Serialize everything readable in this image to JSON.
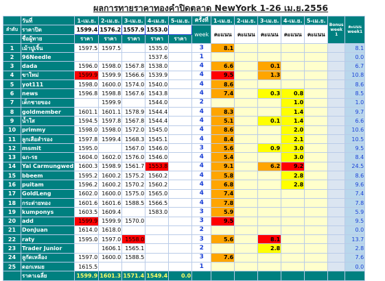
{
  "title": "ผลการทายราคาทองคำปิดตลาด NewYork 1-26 เม.ย.2556",
  "header": {
    "day_label": "วันที่",
    "rank_label": "ลำดับ",
    "closing_label": "ราคาปิด",
    "player_label": "ชื่อผู้ทาย",
    "price_label": "ราคา",
    "times_label": "ครั้งที่",
    "week_label": "week",
    "score_label": "คะแนน",
    "bonus_label": "Bonus week 1",
    "week1_label": "คะแนน week1",
    "dates": [
      "1-เม.ย.",
      "2-เม.ย.",
      "3-เม.ย.",
      "4-เม.ย.",
      "5-เม.ย."
    ],
    "closing_prices": [
      "1599.4",
      "1576.2",
      "1557.9",
      "1553.0",
      ""
    ]
  },
  "rows": [
    {
      "no": "1",
      "name": "เม้าปูเจิ้น",
      "p": [
        "1597.5",
        "1597.5",
        "",
        "1535.0",
        ""
      ],
      "red": [],
      "wk": "3",
      "s": [
        "8.1",
        "",
        "",
        "",
        ""
      ],
      "sc": [
        "o",
        "",
        "",
        "",
        ""
      ],
      "bonus": "",
      "week1": "8.1"
    },
    {
      "no": "2",
      "name": "96Needle",
      "p": [
        "",
        "",
        "",
        "1537.6",
        ""
      ],
      "red": [],
      "wk": "1",
      "s": [
        "",
        "",
        "",
        "",
        ""
      ],
      "sc": [
        "",
        "",
        "",
        "",
        ""
      ],
      "bonus": "",
      "week1": "0.0"
    },
    {
      "no": "3",
      "name": "dada",
      "p": [
        "1596.0",
        "1598.0",
        "1567.8",
        "1538.0",
        ""
      ],
      "red": [],
      "wk": "4",
      "s": [
        "6.6",
        "",
        "0.1",
        "",
        ""
      ],
      "sc": [
        "o",
        "",
        "o",
        "",
        ""
      ],
      "bonus": "",
      "week1": "6.7"
    },
    {
      "no": "4",
      "name": "ขาใหม่",
      "p": [
        "1599.9",
        "1599.9",
        "1566.6",
        "1539.9",
        ""
      ],
      "red": [
        0
      ],
      "wk": "4",
      "s": [
        "9.5",
        "",
        "1.3",
        "",
        ""
      ],
      "sc": [
        "r",
        "",
        "o",
        "",
        ""
      ],
      "bonus": "",
      "week1": "10.8"
    },
    {
      "no": "5",
      "name": "yot111",
      "p": [
        "1598.0",
        "1600.0",
        "1574.0",
        "1540.0",
        ""
      ],
      "red": [],
      "wk": "4",
      "s": [
        "8.6",
        "",
        "",
        "",
        ""
      ],
      "sc": [
        "o",
        "",
        "",
        "",
        ""
      ],
      "bonus": "",
      "week1": "8.6"
    },
    {
      "no": "6",
      "name": "news",
      "p": [
        "1596.8",
        "1598.8",
        "1567.6",
        "1543.8",
        ""
      ],
      "red": [],
      "wk": "4",
      "s": [
        "7.4",
        "",
        "0.3",
        "0.8",
        ""
      ],
      "sc": [
        "o",
        "",
        "y",
        "y",
        ""
      ],
      "bonus": "",
      "week1": "8.5"
    },
    {
      "no": "7",
      "name": "เด็กชายของ",
      "p": [
        "",
        "1599.9",
        "",
        "1544.0",
        ""
      ],
      "red": [],
      "wk": "2",
      "s": [
        "",
        "",
        "",
        "1.0",
        ""
      ],
      "sc": [
        "",
        "",
        "",
        "y",
        ""
      ],
      "bonus": "",
      "week1": "1.0"
    },
    {
      "no": "8",
      "name": "goldmember",
      "p": [
        "1601.1",
        "1601.1",
        "1578.9",
        "1544.4",
        ""
      ],
      "red": [],
      "wk": "4",
      "s": [
        "8.3",
        "",
        "",
        "1.4",
        ""
      ],
      "sc": [
        "o",
        "",
        "",
        "y",
        ""
      ],
      "bonus": "",
      "week1": "9.7"
    },
    {
      "no": "9",
      "name": "น้ำใส",
      "p": [
        "1594.5",
        "1597.8",
        "1567.8",
        "1544.4",
        ""
      ],
      "red": [],
      "wk": "4",
      "s": [
        "5.1",
        "",
        "0.1",
        "1.4",
        ""
      ],
      "sc": [
        "o",
        "",
        "y",
        "y",
        ""
      ],
      "bonus": "",
      "week1": "6.6"
    },
    {
      "no": "10",
      "name": "primmy",
      "p": [
        "1598.0",
        "1598.0",
        "1572.0",
        "1545.0",
        ""
      ],
      "red": [],
      "wk": "4",
      "s": [
        "8.6",
        "",
        "",
        "2.0",
        ""
      ],
      "sc": [
        "o",
        "",
        "",
        "y",
        ""
      ],
      "bonus": "",
      "week1": "10.6"
    },
    {
      "no": "11",
      "name": "ลูกเสือสำรอง",
      "p": [
        "1597.8",
        "1599.4",
        "1568.3",
        "1545.1",
        ""
      ],
      "red": [],
      "wk": "4",
      "s": [
        "8.4",
        "",
        "",
        "2.1",
        ""
      ],
      "sc": [
        "o",
        "",
        "",
        "y",
        ""
      ],
      "bonus": "",
      "week1": "10.5"
    },
    {
      "no": "12",
      "name": "msmit",
      "p": [
        "1595.0",
        "",
        "1567.0",
        "1546.0",
        ""
      ],
      "red": [],
      "wk": "3",
      "s": [
        "5.6",
        "",
        "0.9",
        "3.0",
        ""
      ],
      "sc": [
        "o",
        "",
        "y",
        "y",
        ""
      ],
      "bonus": "",
      "week1": "9.5"
    },
    {
      "no": "13",
      "name": "ฉก-รธ",
      "p": [
        "1604.0",
        "1602.0",
        "1576.0",
        "1546.0",
        ""
      ],
      "red": [],
      "wk": "4",
      "s": [
        "5.4",
        "",
        "",
        "3.0",
        ""
      ],
      "sc": [
        "o",
        "",
        "",
        "y",
        ""
      ],
      "bonus": "",
      "week1": "8.4"
    },
    {
      "no": "14",
      "name": "Yai Carmungwed",
      "p": [
        "1600.3",
        "1598.9",
        "1561.7",
        "1553.8",
        ""
      ],
      "red": [
        3
      ],
      "wk": "4",
      "s": [
        "9.1",
        "",
        "6.2",
        "9.2",
        ""
      ],
      "sc": [
        "o",
        "",
        "o",
        "r",
        ""
      ],
      "bonus": "",
      "week1": "24.5"
    },
    {
      "no": "15",
      "name": "bbeem",
      "p": [
        "1595.2",
        "1600.2",
        "1575.2",
        "1560.2",
        ""
      ],
      "red": [],
      "wk": "4",
      "s": [
        "5.8",
        "",
        "",
        "2.8",
        ""
      ],
      "sc": [
        "o",
        "",
        "",
        "y",
        ""
      ],
      "bonus": "",
      "week1": "8.6"
    },
    {
      "no": "16",
      "name": "puitam",
      "p": [
        "1596.2",
        "1600.2",
        "1570.2",
        "1560.2",
        ""
      ],
      "red": [],
      "wk": "4",
      "s": [
        "6.8",
        "",
        "",
        "2.8",
        ""
      ],
      "sc": [
        "o",
        "",
        "",
        "y",
        ""
      ],
      "bonus": "",
      "week1": "9.6"
    },
    {
      "no": "17",
      "name": "GoldLeng",
      "p": [
        "1602.0",
        "1600.0",
        "1575.0",
        "1565.0",
        ""
      ],
      "red": [],
      "wk": "4",
      "s": [
        "7.4",
        "",
        "",
        "",
        ""
      ],
      "sc": [
        "o",
        "",
        "",
        "",
        ""
      ],
      "bonus": "",
      "week1": "7.4"
    },
    {
      "no": "18",
      "name": "กระต่ายทอง",
      "p": [
        "1601.6",
        "1601.6",
        "1588.5",
        "1566.5",
        ""
      ],
      "red": [],
      "wk": "4",
      "s": [
        "7.8",
        "",
        "",
        "",
        ""
      ],
      "sc": [
        "o",
        "",
        "",
        "",
        ""
      ],
      "bonus": "",
      "week1": "7.8"
    },
    {
      "no": "19",
      "name": "kumponys",
      "p": [
        "1603.5",
        "1609.4",
        "",
        "1583.0",
        ""
      ],
      "red": [],
      "wk": "3",
      "s": [
        "5.9",
        "",
        "",
        "",
        ""
      ],
      "sc": [
        "o",
        "",
        "",
        "",
        ""
      ],
      "bonus": "",
      "week1": "5.9"
    },
    {
      "no": "20",
      "name": "add",
      "p": [
        "1599.9",
        "1599.9",
        "1570.0",
        "",
        ""
      ],
      "red": [
        0
      ],
      "wk": "3",
      "s": [
        "9.5",
        "",
        "",
        "",
        ""
      ],
      "sc": [
        "r",
        "",
        "",
        "",
        ""
      ],
      "bonus": "",
      "week1": "9.5"
    },
    {
      "no": "21",
      "name": "DonJuan",
      "p": [
        "1614.0",
        "1618.0",
        "",
        "",
        ""
      ],
      "red": [],
      "wk": "2",
      "s": [
        "",
        "",
        "",
        "",
        ""
      ],
      "sc": [
        "",
        "",
        "",
        "",
        ""
      ],
      "bonus": "",
      "week1": "0.0"
    },
    {
      "no": "22",
      "name": "raty",
      "p": [
        "1595.0",
        "1597.0",
        "1558.0",
        "",
        ""
      ],
      "red": [
        2
      ],
      "wk": "3",
      "s": [
        "5.6",
        "",
        "8.1",
        "",
        ""
      ],
      "sc": [
        "o",
        "",
        "r",
        "",
        ""
      ],
      "bonus": "",
      "week1": "13.7"
    },
    {
      "no": "23",
      "name": "Trader Junior",
      "p": [
        "",
        "1606.1",
        "1565.1",
        "",
        ""
      ],
      "red": [],
      "wk": "2",
      "s": [
        "",
        "",
        "2.8",
        "",
        ""
      ],
      "sc": [
        "",
        "",
        "y",
        "",
        ""
      ],
      "bonus": "",
      "week1": "2.8"
    },
    {
      "no": "24",
      "name": "ลูกัดเหลือง",
      "p": [
        "1597.0",
        "1600.0",
        "1588.5",
        "",
        ""
      ],
      "red": [],
      "wk": "3",
      "s": [
        "7.6",
        "",
        "",
        "",
        ""
      ],
      "sc": [
        "o",
        "",
        "",
        "",
        ""
      ],
      "bonus": "",
      "week1": "7.6"
    },
    {
      "no": "25",
      "name": "ดอกเหมย",
      "p": [
        "1615.5",
        "",
        "",
        "",
        ""
      ],
      "red": [],
      "wk": "1",
      "s": [
        "",
        "",
        "",
        "",
        ""
      ],
      "sc": [
        "",
        "",
        "",
        "",
        ""
      ],
      "bonus": "",
      "week1": "0.0"
    }
  ],
  "footer": {
    "avg_label": "ราคาเฉลี่ย",
    "avg_values": [
      "1599.9",
      "1601.3",
      "1571.4",
      "1549.4",
      "0.0"
    ]
  },
  "colors": {
    "teal": "#008080",
    "orange": "#ffa500",
    "red": "#ff0000",
    "yellow": "#ffff00",
    "pale_yellow": "#ffffcc",
    "week_blue": "#1a3fd6"
  }
}
